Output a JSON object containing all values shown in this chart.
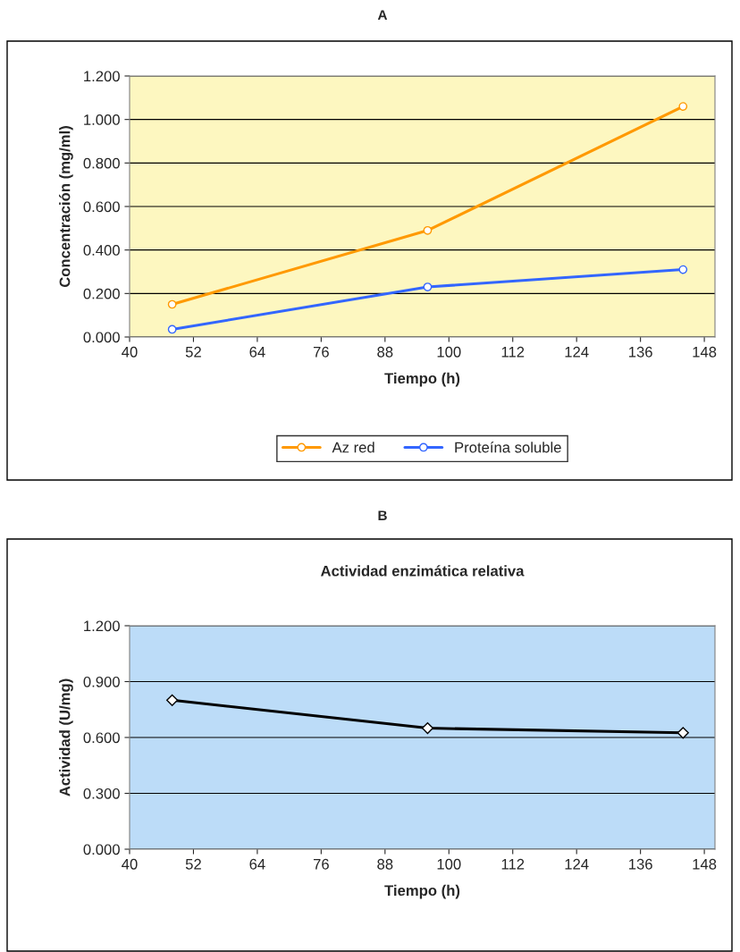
{
  "chart_data": [
    {
      "type": "line",
      "annotations": [
        "A"
      ],
      "xlabel": "Tiempo (h)",
      "ylabel": "Concentración (mg/ml)",
      "x": [
        48,
        96,
        144
      ],
      "series": [
        {
          "name": "Az red",
          "color": "#ff9900",
          "values": [
            0.15,
            0.49,
            1.06
          ]
        },
        {
          "name": "Proteína soluble",
          "color": "#3366ff",
          "values": [
            0.035,
            0.23,
            0.31
          ]
        }
      ],
      "xlim": [
        40,
        150
      ],
      "xticks": [
        40,
        52,
        64,
        76,
        88,
        100,
        112,
        124,
        136,
        148
      ],
      "ylim": [
        0,
        1.2
      ],
      "yticks": [
        {
          "value": 0,
          "label": "0.000"
        },
        {
          "value": 0.2,
          "label": "0.200"
        },
        {
          "value": 0.4,
          "label": "0.400"
        },
        {
          "value": 0.6,
          "label": "0.600"
        },
        {
          "value": 0.8,
          "label": "0.800"
        },
        {
          "value": 1.0,
          "label": "1.000"
        },
        {
          "value": 1.2,
          "label": "1.200"
        }
      ],
      "grid": "y",
      "legend": "bottom",
      "marker": "circle",
      "line_style": "solid"
    },
    {
      "type": "line",
      "annotations": [
        "B"
      ],
      "title": "Actividad enzimática relativa",
      "xlabel": "Tiempo (h)",
      "ylabel": "Actividad (U/mg)",
      "x": [
        48,
        96,
        144
      ],
      "series": [
        {
          "color": "#000000",
          "values": [
            0.8,
            0.65,
            0.625
          ]
        }
      ],
      "xlim": [
        40,
        150
      ],
      "xticks": [
        40,
        52,
        64,
        76,
        88,
        100,
        112,
        124,
        136,
        148
      ],
      "ylim": [
        0,
        1.2
      ],
      "yticks": [
        {
          "value": 0,
          "label": "0.000"
        },
        {
          "value": 0.3,
          "label": "0.300"
        },
        {
          "value": 0.6,
          "label": "0.600"
        },
        {
          "value": 0.9,
          "label": "0.900"
        },
        {
          "value": 1.2,
          "label": "1.200"
        }
      ],
      "grid": "y",
      "marker": "diamond",
      "line_style": "solid"
    }
  ]
}
